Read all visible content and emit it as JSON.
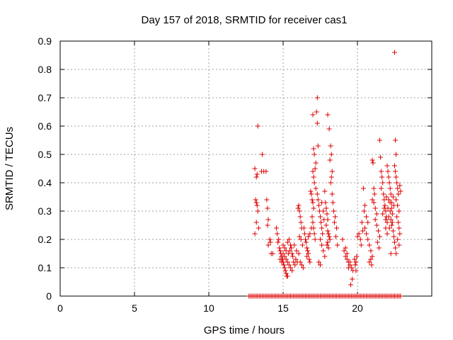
{
  "chart_data": {
    "type": "scatter",
    "title": "Day 157 of 2018, SRMTID for receiver cas1",
    "xlabel": "GPS time / hours",
    "ylabel": "SRMTID / TECUs",
    "xlim": [
      0,
      25
    ],
    "ylim": [
      0,
      0.9
    ],
    "x_ticks": [
      0,
      5,
      10,
      15,
      20
    ],
    "y_ticks": [
      0,
      0.1,
      0.2,
      0.3,
      0.4,
      0.5,
      0.6,
      0.7,
      0.8,
      0.9
    ],
    "x_tick_labels": [
      "0",
      "5",
      "10",
      "15",
      "20"
    ],
    "y_tick_labels": [
      "0",
      "0.1",
      "0.2",
      "0.3",
      "0.4",
      "0.5",
      "0.6",
      "0.7",
      "0.8",
      "0.9"
    ],
    "grid": true,
    "marker": "+",
    "color": "#dd0000",
    "series": [
      {
        "name": "SRMTID",
        "points": [
          [
            13.1,
            0.45
          ],
          [
            13.2,
            0.42
          ],
          [
            13.25,
            0.43
          ],
          [
            13.3,
            0.6
          ],
          [
            13.15,
            0.34
          ],
          [
            13.2,
            0.33
          ],
          [
            13.25,
            0.32
          ],
          [
            13.3,
            0.3
          ],
          [
            13.2,
            0.26
          ],
          [
            13.1,
            0.22
          ],
          [
            13.35,
            0.24
          ],
          [
            13.6,
            0.5
          ],
          [
            13.55,
            0.44
          ],
          [
            13.7,
            0.44
          ],
          [
            13.85,
            0.44
          ],
          [
            13.9,
            0.34
          ],
          [
            13.95,
            0.31
          ],
          [
            14.0,
            0.27
          ],
          [
            13.95,
            0.25
          ],
          [
            14.1,
            0.2
          ],
          [
            14.15,
            0.19
          ],
          [
            14.0,
            0.18
          ],
          [
            14.2,
            0.15
          ],
          [
            14.3,
            0.15
          ],
          [
            14.55,
            0.24
          ],
          [
            14.6,
            0.22
          ],
          [
            14.7,
            0.2
          ],
          [
            14.65,
            0.19
          ],
          [
            14.75,
            0.17
          ],
          [
            14.8,
            0.16
          ],
          [
            14.85,
            0.15
          ],
          [
            14.9,
            0.14
          ],
          [
            14.95,
            0.13
          ],
          [
            15.0,
            0.12
          ],
          [
            15.05,
            0.11
          ],
          [
            15.1,
            0.1
          ],
          [
            15.15,
            0.09
          ],
          [
            15.2,
            0.08
          ],
          [
            15.25,
            0.07
          ],
          [
            15.3,
            0.07
          ],
          [
            14.8,
            0.13
          ],
          [
            14.9,
            0.12
          ],
          [
            15.0,
            0.15
          ],
          [
            15.1,
            0.14
          ],
          [
            15.2,
            0.13
          ],
          [
            15.3,
            0.12
          ],
          [
            15.4,
            0.11
          ],
          [
            15.5,
            0.1
          ],
          [
            15.6,
            0.09
          ],
          [
            15.35,
            0.15
          ],
          [
            15.45,
            0.16
          ],
          [
            15.55,
            0.17
          ],
          [
            15.65,
            0.14
          ],
          [
            15.7,
            0.12
          ],
          [
            15.8,
            0.11
          ],
          [
            15.0,
            0.18
          ],
          [
            15.1,
            0.17
          ],
          [
            15.2,
            0.16
          ],
          [
            15.3,
            0.19
          ],
          [
            15.4,
            0.2
          ],
          [
            15.5,
            0.18
          ],
          [
            15.6,
            0.15
          ],
          [
            15.75,
            0.18
          ],
          [
            15.85,
            0.13
          ],
          [
            15.95,
            0.12
          ],
          [
            16.0,
            0.31
          ],
          [
            16.05,
            0.32
          ],
          [
            16.1,
            0.3
          ],
          [
            16.15,
            0.28
          ],
          [
            16.2,
            0.26
          ],
          [
            16.25,
            0.24
          ],
          [
            16.1,
            0.21
          ],
          [
            16.2,
            0.2
          ],
          [
            16.3,
            0.18
          ],
          [
            16.05,
            0.15
          ],
          [
            16.15,
            0.12
          ],
          [
            16.25,
            0.11
          ],
          [
            16.35,
            0.1
          ],
          [
            16.5,
            0.2
          ],
          [
            16.55,
            0.19
          ],
          [
            16.6,
            0.17
          ],
          [
            16.65,
            0.16
          ],
          [
            16.7,
            0.15
          ],
          [
            16.75,
            0.13
          ],
          [
            16.8,
            0.12
          ],
          [
            16.7,
            0.21
          ],
          [
            16.8,
            0.22
          ],
          [
            16.9,
            0.24
          ],
          [
            16.85,
            0.37
          ],
          [
            16.9,
            0.36
          ],
          [
            16.95,
            0.34
          ],
          [
            17.0,
            0.33
          ],
          [
            17.05,
            0.31
          ],
          [
            16.95,
            0.28
          ],
          [
            17.0,
            0.26
          ],
          [
            17.05,
            0.24
          ],
          [
            17.1,
            0.22
          ],
          [
            17.15,
            0.2
          ],
          [
            17.0,
            0.64
          ],
          [
            17.05,
            0.52
          ],
          [
            17.1,
            0.5
          ],
          [
            17.15,
            0.45
          ],
          [
            17.0,
            0.44
          ],
          [
            17.05,
            0.42
          ],
          [
            17.1,
            0.4
          ],
          [
            17.2,
            0.38
          ],
          [
            17.25,
            0.65
          ],
          [
            17.3,
            0.7
          ],
          [
            17.3,
            0.61
          ],
          [
            17.35,
            0.53
          ],
          [
            17.2,
            0.47
          ],
          [
            17.3,
            0.36
          ],
          [
            17.35,
            0.34
          ],
          [
            17.4,
            0.32
          ],
          [
            17.45,
            0.3
          ],
          [
            17.5,
            0.28
          ],
          [
            17.55,
            0.26
          ],
          [
            17.6,
            0.24
          ],
          [
            17.65,
            0.22
          ],
          [
            17.5,
            0.2
          ],
          [
            17.6,
            0.18
          ],
          [
            17.7,
            0.16
          ],
          [
            17.8,
            0.14
          ],
          [
            17.4,
            0.12
          ],
          [
            17.5,
            0.11
          ],
          [
            17.8,
            0.37
          ],
          [
            17.85,
            0.33
          ],
          [
            17.9,
            0.31
          ],
          [
            17.95,
            0.29
          ],
          [
            18.0,
            0.27
          ],
          [
            17.9,
            0.25
          ],
          [
            18.0,
            0.23
          ],
          [
            18.05,
            0.22
          ],
          [
            18.1,
            0.21
          ],
          [
            18.15,
            0.2
          ],
          [
            18.0,
            0.19
          ],
          [
            17.95,
            0.18
          ],
          [
            18.05,
            0.17
          ],
          [
            18.0,
            0.64
          ],
          [
            18.1,
            0.59
          ],
          [
            18.2,
            0.53
          ],
          [
            18.25,
            0.5
          ],
          [
            18.15,
            0.48
          ],
          [
            18.3,
            0.44
          ],
          [
            18.25,
            0.42
          ],
          [
            18.2,
            0.4
          ],
          [
            18.3,
            0.36
          ],
          [
            18.35,
            0.33
          ],
          [
            18.4,
            0.3
          ],
          [
            18.5,
            0.28
          ],
          [
            18.45,
            0.26
          ],
          [
            18.6,
            0.24
          ],
          [
            18.55,
            0.21
          ],
          [
            18.65,
            0.18
          ],
          [
            19.0,
            0.2
          ],
          [
            19.1,
            0.16
          ],
          [
            19.2,
            0.14
          ],
          [
            19.3,
            0.13
          ],
          [
            19.4,
            0.12
          ],
          [
            19.5,
            0.11
          ],
          [
            19.6,
            0.1
          ],
          [
            19.7,
            0.09
          ],
          [
            19.55,
            0.04
          ],
          [
            19.65,
            0.06
          ],
          [
            19.4,
            0.1
          ],
          [
            19.5,
            0.12
          ],
          [
            19.8,
            0.13
          ],
          [
            19.9,
            0.12
          ],
          [
            19.95,
            0.14
          ],
          [
            19.85,
            0.11
          ],
          [
            19.9,
            0.09
          ],
          [
            20.0,
            0.21
          ],
          [
            20.1,
            0.22
          ],
          [
            20.2,
            0.2
          ],
          [
            20.25,
            0.18
          ],
          [
            20.3,
            0.26
          ],
          [
            20.35,
            0.23
          ],
          [
            20.4,
            0.38
          ],
          [
            20.45,
            0.3
          ],
          [
            20.5,
            0.24
          ],
          [
            20.6,
            0.22
          ],
          [
            20.7,
            0.2
          ],
          [
            20.8,
            0.18
          ],
          [
            20.9,
            0.16
          ],
          [
            21.0,
            0.14
          ],
          [
            20.8,
            0.12
          ],
          [
            20.9,
            0.13
          ],
          [
            21.0,
            0.48
          ],
          [
            21.05,
            0.47
          ],
          [
            21.1,
            0.38
          ],
          [
            21.15,
            0.36
          ],
          [
            21.0,
            0.34
          ],
          [
            21.1,
            0.33
          ],
          [
            21.2,
            0.31
          ],
          [
            21.3,
            0.29
          ],
          [
            21.2,
            0.27
          ],
          [
            21.3,
            0.25
          ],
          [
            21.4,
            0.23
          ],
          [
            21.5,
            0.21
          ],
          [
            21.35,
            0.19
          ],
          [
            21.45,
            0.17
          ],
          [
            21.5,
            0.55
          ],
          [
            21.55,
            0.49
          ],
          [
            21.6,
            0.44
          ],
          [
            21.65,
            0.42
          ],
          [
            21.7,
            0.4
          ],
          [
            21.6,
            0.38
          ],
          [
            21.75,
            0.36
          ],
          [
            21.8,
            0.34
          ],
          [
            21.85,
            0.32
          ],
          [
            21.9,
            0.3
          ],
          [
            21.95,
            0.28
          ],
          [
            22.0,
            0.26
          ],
          [
            21.9,
            0.24
          ],
          [
            22.0,
            0.22
          ],
          [
            22.0,
            0.46
          ],
          [
            22.05,
            0.44
          ],
          [
            22.1,
            0.42
          ],
          [
            22.15,
            0.4
          ],
          [
            22.2,
            0.38
          ],
          [
            22.25,
            0.36
          ],
          [
            22.1,
            0.34
          ],
          [
            22.2,
            0.33
          ],
          [
            22.3,
            0.31
          ],
          [
            22.35,
            0.29
          ],
          [
            22.25,
            0.27
          ],
          [
            22.3,
            0.25
          ],
          [
            22.4,
            0.23
          ],
          [
            22.45,
            0.21
          ],
          [
            22.5,
            0.19
          ],
          [
            22.55,
            0.17
          ],
          [
            22.5,
            0.86
          ],
          [
            22.55,
            0.55
          ],
          [
            22.6,
            0.5
          ],
          [
            22.5,
            0.46
          ],
          [
            22.55,
            0.44
          ],
          [
            22.6,
            0.42
          ],
          [
            22.65,
            0.4
          ],
          [
            22.7,
            0.38
          ],
          [
            22.75,
            0.36
          ],
          [
            22.6,
            0.34
          ],
          [
            22.7,
            0.32
          ],
          [
            22.8,
            0.3
          ],
          [
            22.65,
            0.28
          ],
          [
            22.75,
            0.26
          ],
          [
            22.8,
            0.24
          ],
          [
            22.85,
            0.22
          ],
          [
            22.7,
            0.2
          ],
          [
            22.8,
            0.18
          ],
          [
            22.85,
            0.39
          ],
          [
            22.9,
            0.37
          ],
          [
            21.7,
            0.29
          ],
          [
            21.8,
            0.31
          ],
          [
            21.9,
            0.27
          ],
          [
            22.1,
            0.28
          ],
          [
            22.2,
            0.3
          ],
          [
            22.3,
            0.33
          ],
          [
            22.4,
            0.35
          ],
          [
            22.45,
            0.32
          ],
          [
            22.35,
            0.26
          ],
          [
            22.15,
            0.24
          ],
          [
            22.05,
            0.31
          ],
          [
            21.95,
            0.35
          ],
          [
            22.25,
            0.15
          ],
          [
            22.6,
            0.15
          ],
          [
            17.6,
            0.33
          ],
          [
            17.7,
            0.3
          ],
          [
            17.75,
            0.27
          ],
          [
            16.4,
            0.24
          ],
          [
            16.45,
            0.22
          ],
          [
            15.9,
            0.16
          ],
          [
            16.6,
            0.14
          ],
          [
            19.2,
            0.17
          ],
          [
            19.3,
            0.15
          ],
          [
            20.6,
            0.28
          ],
          [
            20.7,
            0.26
          ],
          [
            20.95,
            0.11
          ],
          [
            20.5,
            0.32
          ]
        ]
      }
    ],
    "baseline_x_start": 12.7,
    "baseline_x_end": 22.9,
    "baseline_step": 0.1
  }
}
